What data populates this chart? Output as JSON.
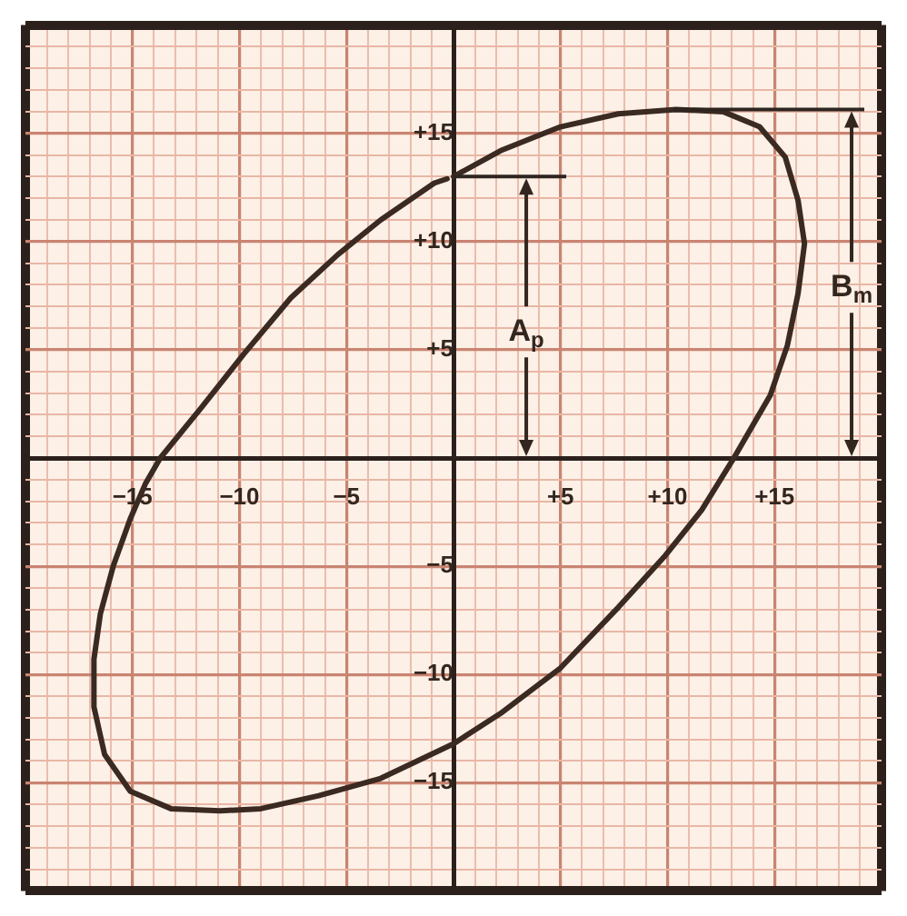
{
  "chart_data": {
    "type": "line",
    "xlim": [
      -20,
      20
    ],
    "ylim": [
      -20,
      20
    ],
    "xticks": [
      {
        "value": -20,
        "label": null
      },
      {
        "value": -19,
        "label": null
      },
      {
        "value": -18,
        "label": null
      },
      {
        "value": -17,
        "label": null
      },
      {
        "value": -16,
        "label": null
      },
      {
        "value": -15,
        "label": "−15"
      },
      {
        "value": -14,
        "label": null
      },
      {
        "value": -13,
        "label": null
      },
      {
        "value": -12,
        "label": null
      },
      {
        "value": -11,
        "label": null
      },
      {
        "value": -10,
        "label": "−10"
      },
      {
        "value": -9,
        "label": null
      },
      {
        "value": -8,
        "label": null
      },
      {
        "value": -7,
        "label": null
      },
      {
        "value": -6,
        "label": null
      },
      {
        "value": -5,
        "label": "−5"
      },
      {
        "value": -4,
        "label": null
      },
      {
        "value": -3,
        "label": null
      },
      {
        "value": -2,
        "label": null
      },
      {
        "value": -1,
        "label": null
      },
      {
        "value": 0,
        "label": null
      },
      {
        "value": 1,
        "label": null
      },
      {
        "value": 2,
        "label": null
      },
      {
        "value": 3,
        "label": null
      },
      {
        "value": 4,
        "label": null
      },
      {
        "value": 5,
        "label": "+5"
      },
      {
        "value": 6,
        "label": null
      },
      {
        "value": 7,
        "label": null
      },
      {
        "value": 8,
        "label": null
      },
      {
        "value": 9,
        "label": null
      },
      {
        "value": 10,
        "label": "+10"
      },
      {
        "value": 11,
        "label": null
      },
      {
        "value": 12,
        "label": null
      },
      {
        "value": 13,
        "label": null
      },
      {
        "value": 14,
        "label": null
      },
      {
        "value": 15,
        "label": "+15"
      },
      {
        "value": 16,
        "label": null
      },
      {
        "value": 17,
        "label": null
      },
      {
        "value": 18,
        "label": null
      },
      {
        "value": 19,
        "label": null
      },
      {
        "value": 20,
        "label": null
      }
    ],
    "yticks": [
      {
        "value": -20,
        "label": null
      },
      {
        "value": -19,
        "label": null
      },
      {
        "value": -18,
        "label": null
      },
      {
        "value": -17,
        "label": null
      },
      {
        "value": -16,
        "label": null
      },
      {
        "value": -15,
        "label": "−15"
      },
      {
        "value": -14,
        "label": null
      },
      {
        "value": -13,
        "label": null
      },
      {
        "value": -12,
        "label": null
      },
      {
        "value": -11,
        "label": null
      },
      {
        "value": -10,
        "label": "−10"
      },
      {
        "value": -9,
        "label": null
      },
      {
        "value": -8,
        "label": null
      },
      {
        "value": -7,
        "label": null
      },
      {
        "value": -6,
        "label": null
      },
      {
        "value": -5,
        "label": "−5"
      },
      {
        "value": -4,
        "label": null
      },
      {
        "value": -3,
        "label": null
      },
      {
        "value": -2,
        "label": null
      },
      {
        "value": -1,
        "label": null
      },
      {
        "value": 0,
        "label": null
      },
      {
        "value": 1,
        "label": null
      },
      {
        "value": 2,
        "label": null
      },
      {
        "value": 3,
        "label": null
      },
      {
        "value": 4,
        "label": null
      },
      {
        "value": 5,
        "label": "+5"
      },
      {
        "value": 6,
        "label": null
      },
      {
        "value": 7,
        "label": null
      },
      {
        "value": 8,
        "label": null
      },
      {
        "value": 9,
        "label": null
      },
      {
        "value": 10,
        "label": "+10"
      },
      {
        "value": 11,
        "label": null
      },
      {
        "value": 12,
        "label": null
      },
      {
        "value": 13,
        "label": null
      },
      {
        "value": 14,
        "label": null
      },
      {
        "value": 15,
        "label": "+15"
      },
      {
        "value": 16,
        "label": null
      },
      {
        "value": 17,
        "label": null
      },
      {
        "value": 18,
        "label": null
      },
      {
        "value": 19,
        "label": null
      },
      {
        "value": 20,
        "label": null
      }
    ],
    "grid": true,
    "series": [
      {
        "color": "#3a2a21",
        "x": [
          0,
          2.2,
          5,
          7.7,
          10.4,
          12.6,
          14.3,
          15.5,
          16.1,
          16.4,
          16.1,
          15.6,
          14.8,
          13.8,
          13.1,
          11.6,
          9.9,
          7.7,
          5,
          2.2,
          0,
          -3.4,
          -6.3,
          -9,
          -10.9,
          -13.2,
          -15.1,
          -16.3,
          -16.8,
          -16.8,
          -16.5,
          -15.9,
          -15.1,
          -14.4,
          -13.7,
          -11.8,
          -9.8,
          -7.6,
          -5.4,
          -3.4,
          -0.9,
          -0.3
        ],
        "values": [
          13,
          14.2,
          15.3,
          15.9,
          16.1,
          16,
          15.3,
          13.9,
          11.9,
          9.9,
          7.6,
          5.2,
          2.9,
          1.2,
          0,
          -2.4,
          -4.5,
          -6.9,
          -9.7,
          -11.8,
          -13.2,
          -14.8,
          -15.6,
          -16.2,
          -16.3,
          -16.2,
          -15.4,
          -13.7,
          -11.5,
          -9.3,
          -7.2,
          -5,
          -2.8,
          -1.2,
          0,
          2.3,
          4.8,
          7.4,
          9.4,
          11,
          12.7,
          12.9
        ]
      }
    ],
    "ref_lines": [
      {
        "axis": "y",
        "value": 13,
        "color": "#2f2520"
      },
      {
        "axis": "y",
        "value": 16.1,
        "color": "#2f2520"
      }
    ],
    "annotations": [
      {
        "text": "A$_{p}$",
        "x": 3.4,
        "y": 13
      },
      {
        "text": "B$_{m}$",
        "x": 18.6,
        "y": 16.1
      }
    ]
  }
}
